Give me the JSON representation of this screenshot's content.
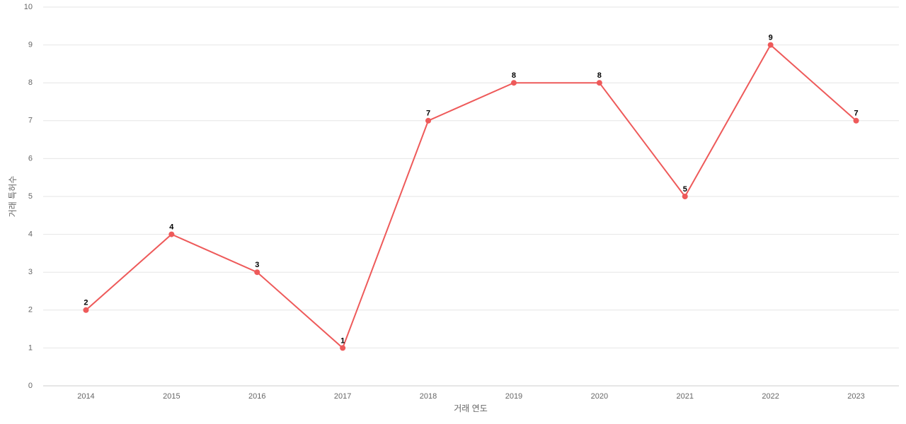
{
  "chart_data": {
    "type": "line",
    "x_label": "거래 연도",
    "y_label": "거래 특허수",
    "categories": [
      "2014",
      "2015",
      "2016",
      "2017",
      "2018",
      "2019",
      "2020",
      "2021",
      "2022",
      "2023"
    ],
    "series": [
      {
        "name": "거래 특허수",
        "color": "#ee5a5a",
        "values": [
          2,
          4,
          3,
          1,
          7,
          8,
          8,
          5,
          9,
          7
        ]
      }
    ],
    "ylim": [
      0,
      10
    ],
    "yticks": [
      0,
      1,
      2,
      3,
      4,
      5,
      6,
      7,
      8,
      9,
      10
    ],
    "grid": true
  }
}
